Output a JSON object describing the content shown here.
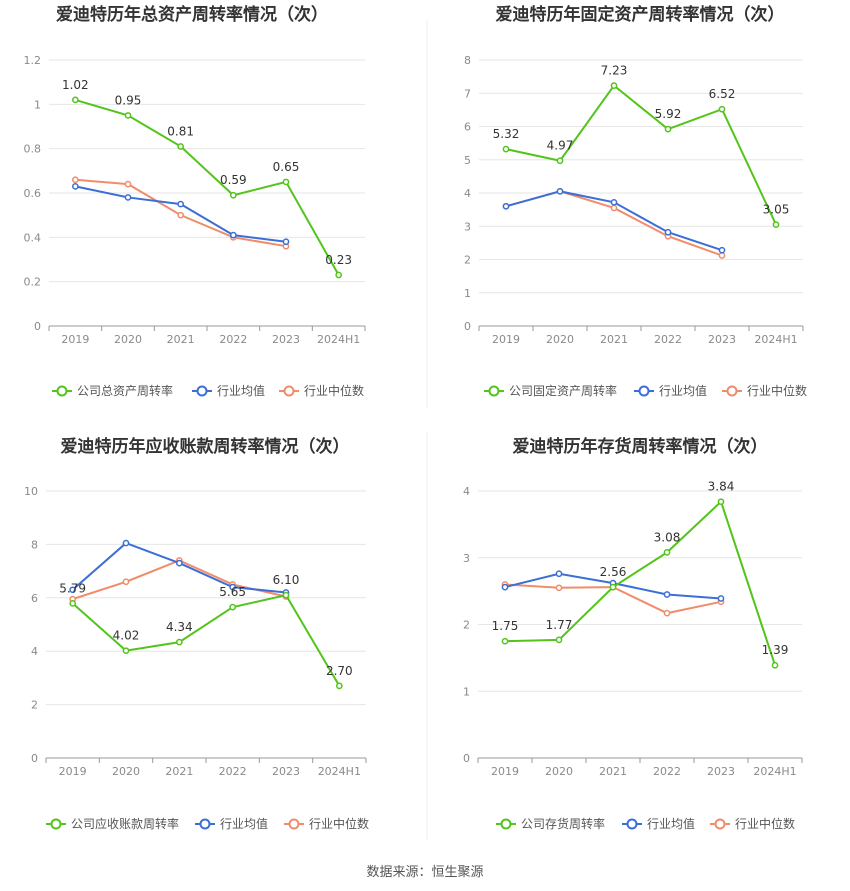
{
  "source": "数据来源：恒生聚源",
  "legend_common": {
    "industry_avg": "行业均值",
    "industry_median": "行业中位数"
  },
  "colors": {
    "company": "#52c41a",
    "industry_avg": "#3b6fd6",
    "industry_median": "#f08c6a",
    "grid": "#e6e6e6",
    "axis": "#999999"
  },
  "chart_data": [
    {
      "type": "line",
      "title": "爱迪特历年总资产周转率情况（次）",
      "categories": [
        "2019",
        "2020",
        "2021",
        "2022",
        "2023",
        "2024H1"
      ],
      "ylim": [
        0,
        1.2
      ],
      "yticks": [
        "0",
        "0.2",
        "0.4",
        "0.6",
        "0.8",
        "1",
        "1.2"
      ],
      "series": [
        {
          "name": "公司总资产周转率",
          "key": "company",
          "values": [
            1.02,
            0.95,
            0.81,
            0.59,
            0.65,
            0.23
          ],
          "labels": [
            "1.02",
            "0.95",
            "0.81",
            "0.59",
            "0.65",
            "0.23"
          ]
        },
        {
          "name": "行业均值",
          "key": "industry_avg",
          "values": [
            0.63,
            0.58,
            0.55,
            0.41,
            0.38,
            null
          ]
        },
        {
          "name": "行业中位数",
          "key": "industry_median",
          "values": [
            0.66,
            0.64,
            0.5,
            0.4,
            0.36,
            null
          ]
        }
      ]
    },
    {
      "type": "line",
      "title": "爱迪特历年固定资产周转率情况（次）",
      "categories": [
        "2019",
        "2020",
        "2021",
        "2022",
        "2023",
        "2024H1"
      ],
      "ylim": [
        0,
        8
      ],
      "yticks": [
        "0",
        "1",
        "2",
        "3",
        "4",
        "5",
        "6",
        "7",
        "8"
      ],
      "series": [
        {
          "name": "公司固定资产周转率",
          "key": "company",
          "values": [
            5.32,
            4.97,
            7.23,
            5.92,
            6.52,
            3.05
          ],
          "labels": [
            "5.32",
            "4.97",
            "7.23",
            "5.92",
            "6.52",
            "3.05"
          ]
        },
        {
          "name": "行业均值",
          "key": "industry_avg",
          "values": [
            3.6,
            4.05,
            3.72,
            2.82,
            2.28,
            null
          ]
        },
        {
          "name": "行业中位数",
          "key": "industry_median",
          "values": [
            3.6,
            4.05,
            3.55,
            2.7,
            2.12,
            null
          ]
        }
      ]
    },
    {
      "type": "line",
      "title": "爱迪特历年应收账款周转率情况（次）",
      "categories": [
        "2019",
        "2020",
        "2021",
        "2022",
        "2023",
        "2024H1"
      ],
      "ylim": [
        0,
        10
      ],
      "yticks": [
        "0",
        "2",
        "4",
        "6",
        "8",
        "10"
      ],
      "series": [
        {
          "name": "公司应收账款周转率",
          "key": "company",
          "values": [
            5.79,
            4.02,
            4.34,
            5.65,
            6.1,
            2.7
          ],
          "labels": [
            "5.79",
            "4.02",
            "4.34",
            "5.65",
            "6.10",
            "2.70"
          ]
        },
        {
          "name": "行业均值",
          "key": "industry_avg",
          "values": [
            6.3,
            8.05,
            7.3,
            6.4,
            6.2,
            null
          ]
        },
        {
          "name": "行业中位数",
          "key": "industry_median",
          "values": [
            5.95,
            6.6,
            7.4,
            6.5,
            6.05,
            null
          ]
        }
      ]
    },
    {
      "type": "line",
      "title": "爱迪特历年存货周转率情况（次）",
      "categories": [
        "2019",
        "2020",
        "2021",
        "2022",
        "2023",
        "2024H1"
      ],
      "ylim": [
        0,
        4
      ],
      "yticks": [
        "0",
        "1",
        "2",
        "3",
        "4"
      ],
      "series": [
        {
          "name": "公司存货周转率",
          "key": "company",
          "values": [
            1.75,
            1.77,
            2.56,
            3.08,
            3.84,
            1.39
          ],
          "labels": [
            "1.75",
            "1.77",
            "2.56",
            "3.08",
            "3.84",
            "1.39"
          ]
        },
        {
          "name": "行业均值",
          "key": "industry_avg",
          "values": [
            2.56,
            2.76,
            2.62,
            2.45,
            2.39,
            null
          ]
        },
        {
          "name": "行业中位数",
          "key": "industry_median",
          "values": [
            2.6,
            2.55,
            2.56,
            2.17,
            2.34,
            null
          ]
        }
      ]
    }
  ]
}
